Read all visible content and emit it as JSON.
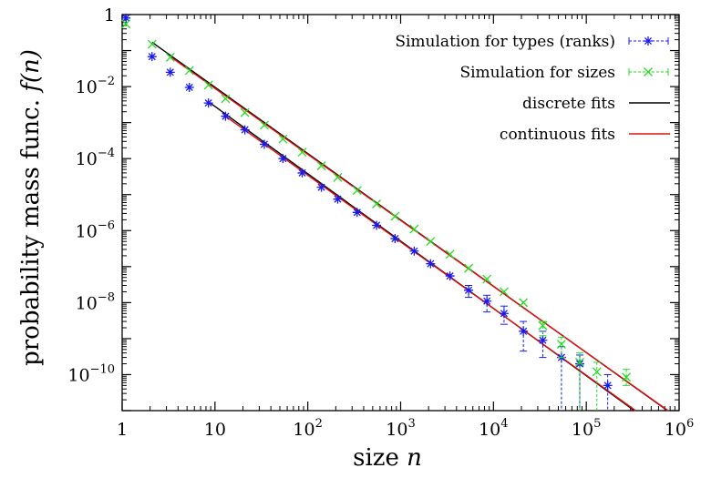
{
  "chart_data": {
    "type": "scatter",
    "xlabel": "size",
    "xlabel_var": "n",
    "ylabel": "probability mass func.",
    "ylabel_var": "f(n)",
    "xscale": "log",
    "yscale": "log",
    "xlim": [
      1,
      1000000
    ],
    "ylim": [
      1e-11,
      1
    ],
    "grid": false,
    "legend_position": "top-right",
    "x_ticks": [
      {
        "value": 1,
        "base": "1",
        "exp": ""
      },
      {
        "value": 10,
        "base": "10",
        "exp": ""
      },
      {
        "value": 100,
        "base": "10",
        "exp": "2"
      },
      {
        "value": 1000,
        "base": "10",
        "exp": "3"
      },
      {
        "value": 10000,
        "base": "10",
        "exp": "4"
      },
      {
        "value": 100000,
        "base": "10",
        "exp": "5"
      },
      {
        "value": 1000000,
        "base": "10",
        "exp": "6"
      }
    ],
    "y_ticks": [
      {
        "value": 1,
        "base": "1",
        "exp": ""
      },
      {
        "value": 0.01,
        "base": "10",
        "exp": "−2"
      },
      {
        "value": 0.0001,
        "base": "10",
        "exp": "−4"
      },
      {
        "value": 1e-06,
        "base": "10",
        "exp": "−6"
      },
      {
        "value": 1e-08,
        "base": "10",
        "exp": "−8"
      },
      {
        "value": 1e-10,
        "base": "10",
        "exp": "−10"
      }
    ],
    "series": [
      {
        "name": "Simulation for types (ranks)",
        "kind": "points",
        "marker": "asterisk",
        "color": "#1a1aee",
        "points": [
          {
            "x": 1.1,
            "y": 0.8
          },
          {
            "x": 2.1,
            "y": 0.068
          },
          {
            "x": 3.3,
            "y": 0.025
          },
          {
            "x": 5.3,
            "y": 0.0095
          },
          {
            "x": 8.5,
            "y": 0.0035
          },
          {
            "x": 13,
            "y": 0.0015
          },
          {
            "x": 21,
            "y": 0.00063
          },
          {
            "x": 34,
            "y": 0.00025
          },
          {
            "x": 54,
            "y": 0.0001
          },
          {
            "x": 87,
            "y": 4e-05
          },
          {
            "x": 140,
            "y": 1.6e-05
          },
          {
            "x": 210,
            "y": 7.5e-06
          },
          {
            "x": 340,
            "y": 3.2e-06
          },
          {
            "x": 550,
            "y": 1.4e-06
          },
          {
            "x": 870,
            "y": 6e-07
          },
          {
            "x": 1400,
            "y": 2.7e-07
          },
          {
            "x": 2100,
            "y": 1.2e-07
          },
          {
            "x": 3400,
            "y": 5.5e-08
          },
          {
            "x": 5400,
            "y": 2.2e-08,
            "ylo": 1.4e-08,
            "yhi": 3e-08
          },
          {
            "x": 8500,
            "y": 1.1e-08,
            "ylo": 5.5e-09,
            "yhi": 1.6e-08
          },
          {
            "x": 13000,
            "y": 5e-09,
            "ylo": 2.5e-09,
            "yhi": 8e-09
          },
          {
            "x": 21000,
            "y": 1.6e-09,
            "ylo": 4.5e-10,
            "yhi": 3e-09
          },
          {
            "x": 34000,
            "y": 9e-10,
            "ylo": 3e-10,
            "yhi": 1.6e-09
          },
          {
            "x": 54000,
            "y": 3e-10,
            "ylo": 1e-11,
            "yhi": 6e-10
          },
          {
            "x": 85000,
            "y": 2e-10,
            "ylo": 1e-11,
            "yhi": 3.5e-10
          },
          {
            "x": 170000,
            "y": 5e-11,
            "ylo": 1e-11,
            "yhi": 1e-10
          }
        ]
      },
      {
        "name": "Simulation for sizes",
        "kind": "points",
        "marker": "cross",
        "color": "#22dd22",
        "points": [
          {
            "x": 1.1,
            "y": 0.55
          },
          {
            "x": 2.1,
            "y": 0.15
          },
          {
            "x": 3.3,
            "y": 0.065
          },
          {
            "x": 5.3,
            "y": 0.028
          },
          {
            "x": 8.5,
            "y": 0.011
          },
          {
            "x": 13,
            "y": 0.0046
          },
          {
            "x": 21,
            "y": 0.0019
          },
          {
            "x": 34,
            "y": 0.00085
          },
          {
            "x": 54,
            "y": 0.00035
          },
          {
            "x": 87,
            "y": 0.00015
          },
          {
            "x": 140,
            "y": 6.3e-05
          },
          {
            "x": 210,
            "y": 3e-05
          },
          {
            "x": 340,
            "y": 1.3e-05
          },
          {
            "x": 550,
            "y": 5.5e-06
          },
          {
            "x": 870,
            "y": 2.5e-06
          },
          {
            "x": 1400,
            "y": 1.1e-06
          },
          {
            "x": 2100,
            "y": 5e-07
          },
          {
            "x": 3400,
            "y": 2.2e-07
          },
          {
            "x": 5400,
            "y": 9e-08
          },
          {
            "x": 8500,
            "y": 4.5e-08
          },
          {
            "x": 13000,
            "y": 2e-08
          },
          {
            "x": 21000,
            "y": 1e-08
          },
          {
            "x": 34000,
            "y": 2.3e-09,
            "ylo": 1.2e-09,
            "yhi": 3e-09
          },
          {
            "x": 54000,
            "y": 7e-10,
            "ylo": 3e-10,
            "yhi": 1.1e-09
          },
          {
            "x": 85000,
            "y": 2.2e-10,
            "ylo": 1e-11,
            "yhi": 4e-10
          },
          {
            "x": 130000,
            "y": 1.2e-10,
            "ylo": 1e-11,
            "yhi": 2.2e-10
          },
          {
            "x": 270000,
            "y": 8.5e-11,
            "ylo": 5e-11,
            "yhi": 1.4e-10
          }
        ]
      },
      {
        "name": "discrete fits",
        "kind": "lines",
        "color": "#000000",
        "lines": [
          [
            {
              "x": 2.1,
              "y": 0.17
            },
            {
              "x": 750000,
              "y": 1e-11
            }
          ],
          [
            {
              "x": 8.5,
              "y": 0.0038
            },
            {
              "x": 330000,
              "y": 1e-11
            }
          ]
        ]
      },
      {
        "name": "continuous fits",
        "kind": "lines",
        "color": "#e01010",
        "lines": [
          [
            {
              "x": 3.3,
              "y": 0.068
            },
            {
              "x": 760000,
              "y": 1e-11
            }
          ],
          [
            {
              "x": 13,
              "y": 0.0015
            },
            {
              "x": 340000,
              "y": 1e-11
            }
          ]
        ]
      }
    ]
  }
}
